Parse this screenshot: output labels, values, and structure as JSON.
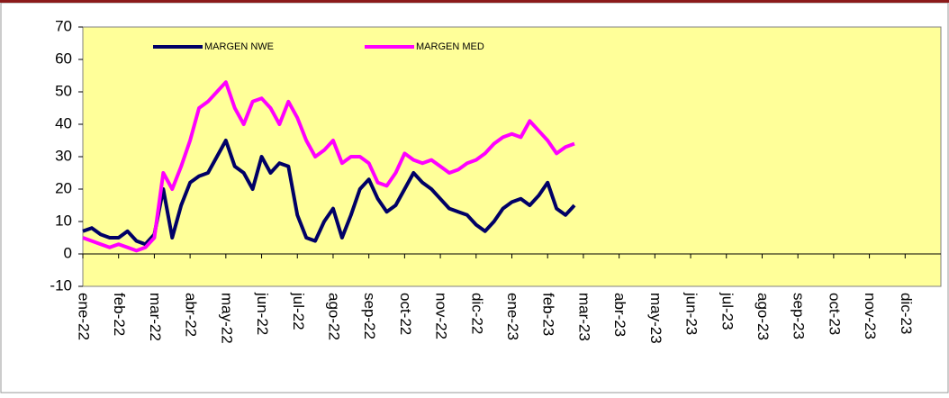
{
  "chart_data": {
    "type": "line",
    "categories": [
      "ene-22",
      null,
      null,
      null,
      "feb-22",
      null,
      null,
      null,
      "mar-22",
      null,
      null,
      null,
      "abr-22",
      null,
      null,
      null,
      "may-22",
      null,
      null,
      null,
      "jun-22",
      null,
      null,
      null,
      "jul-22",
      null,
      null,
      null,
      "ago-22",
      null,
      null,
      null,
      "sep-22",
      null,
      null,
      null,
      "oct-22",
      null,
      null,
      null,
      "nov-22",
      null,
      null,
      null,
      "dic-22",
      null,
      null,
      null,
      "ene-23",
      null,
      null,
      null,
      "feb-23",
      null,
      null,
      null,
      "mar-23",
      null,
      null,
      null,
      "abr-23",
      null,
      null,
      null,
      "may-23",
      null,
      null,
      null,
      "jun-23",
      null,
      null,
      null,
      "jul-23",
      null,
      null,
      null,
      "ago-23",
      null,
      null,
      null,
      "sep-23",
      null,
      null,
      null,
      "oct-23",
      null,
      null,
      null,
      "nov-23",
      null,
      null,
      null,
      "dic-23",
      null,
      null,
      null
    ],
    "series": [
      {
        "name": "MARGEN NWE",
        "color": "#000066",
        "values": [
          7,
          8,
          6,
          5,
          5,
          7,
          4,
          3,
          6,
          20,
          5,
          15,
          22,
          24,
          25,
          30,
          35,
          27,
          25,
          20,
          30,
          25,
          28,
          27,
          12,
          5,
          4,
          10,
          14,
          5,
          12,
          20,
          23,
          17,
          13,
          15,
          20,
          25,
          22,
          20,
          17,
          14,
          13,
          12,
          9,
          7,
          10,
          14,
          16,
          17,
          15,
          18,
          22,
          14,
          12,
          15,
          null,
          null,
          null,
          null,
          null,
          null,
          null,
          null,
          null,
          null,
          null,
          null,
          null,
          null,
          null,
          null,
          null,
          null,
          null,
          null,
          null,
          null,
          null,
          null,
          null,
          null,
          null,
          null,
          null,
          null,
          null,
          null,
          null,
          null,
          null,
          null,
          null,
          null,
          null,
          null
        ]
      },
      {
        "name": "MARGEN MED",
        "color": "#ff00ff",
        "values": [
          5,
          4,
          3,
          2,
          3,
          2,
          1,
          2,
          5,
          25,
          20,
          27,
          35,
          45,
          47,
          50,
          53,
          45,
          40,
          47,
          48,
          45,
          40,
          47,
          42,
          35,
          30,
          32,
          35,
          28,
          30,
          30,
          28,
          22,
          21,
          25,
          31,
          29,
          28,
          29,
          27,
          25,
          26,
          28,
          29,
          31,
          34,
          36,
          37,
          36,
          41,
          38,
          35,
          31,
          33,
          34,
          null,
          null,
          null,
          null,
          null,
          null,
          null,
          null,
          null,
          null,
          null,
          null,
          null,
          null,
          null,
          null,
          null,
          null,
          null,
          null,
          null,
          null,
          null,
          null,
          null,
          null,
          null,
          null,
          null,
          null,
          null,
          null,
          null,
          null,
          null,
          null,
          null,
          null,
          null,
          null
        ]
      }
    ],
    "ylim": [
      -10,
      70
    ],
    "yticks": [
      -10,
      0,
      10,
      20,
      30,
      40,
      50,
      60,
      70
    ],
    "grid": false,
    "legend": "top"
  }
}
